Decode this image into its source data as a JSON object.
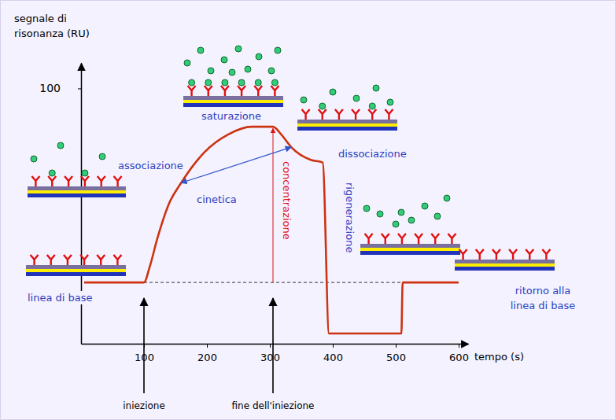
{
  "chart_data": {
    "type": "line",
    "x_label": "tempo (s)",
    "y_label": "segnale di risonanza (RU)",
    "x": [
      5,
      100,
      109,
      121,
      140,
      159,
      196,
      234,
      271,
      305,
      318,
      334,
      365,
      384,
      394,
      509,
      511,
      600
    ],
    "values": [
      24,
      24,
      30,
      41,
      55,
      63,
      75,
      82,
      85,
      85,
      82,
      77,
      72,
      71,
      4,
      4,
      24,
      24
    ],
    "color": "#cc3311",
    "xlim": [
      0,
      615
    ],
    "ylim": [
      0,
      110
    ],
    "xticks": [
      100,
      200,
      300,
      400,
      500,
      600
    ],
    "yticks": [
      100
    ],
    "grid": false,
    "annotations": [
      {
        "text": "linea di base"
      },
      {
        "text": "associazione"
      },
      {
        "text": "cinetica"
      },
      {
        "text": "saturazione"
      },
      {
        "text": "dissociazione"
      },
      {
        "text": "concentrazione",
        "x": 305
      },
      {
        "text": "rigenerazione"
      },
      {
        "text": "ritorno alla linea di base"
      },
      {
        "text": "iniezione",
        "x": 100
      },
      {
        "text": "fine dell'iniezione",
        "x": 305
      }
    ]
  }
}
